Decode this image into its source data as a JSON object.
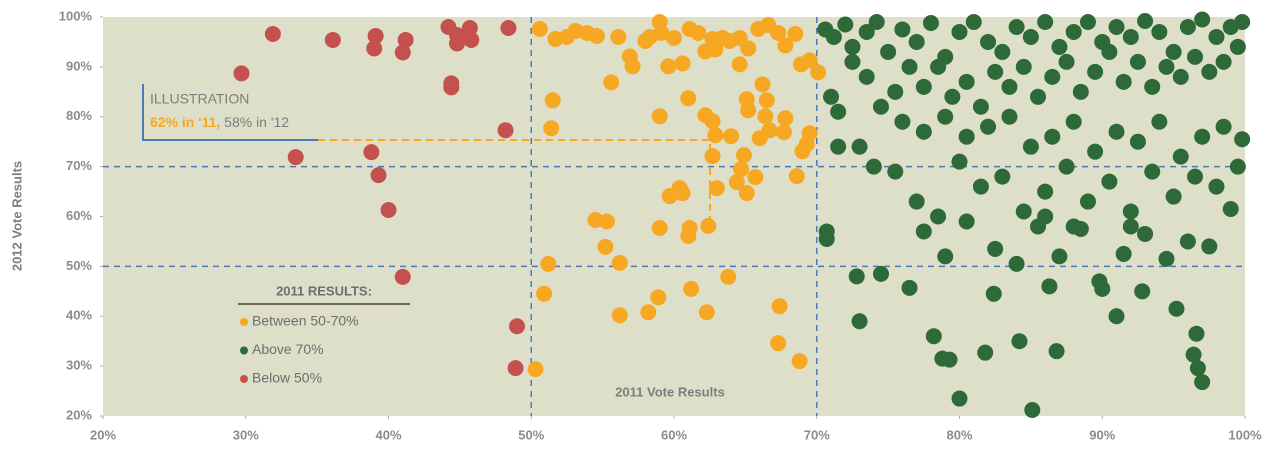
{
  "chart_data": {
    "type": "scatter",
    "x_label": "2011 Vote Results",
    "y_label": "2012 Vote Results",
    "xlim": [
      20,
      100
    ],
    "ylim": [
      20,
      100
    ],
    "xticks": [
      {
        "value": 20,
        "label": "20%"
      },
      {
        "value": 30,
        "label": "30%"
      },
      {
        "value": 40,
        "label": "40%"
      },
      {
        "value": 50,
        "label": "50%"
      },
      {
        "value": 60,
        "label": "60%"
      },
      {
        "value": 70,
        "label": "70%"
      },
      {
        "value": 80,
        "label": "80%"
      },
      {
        "value": 90,
        "label": "90%"
      },
      {
        "value": 100,
        "label": "100%"
      }
    ],
    "yticks": [
      {
        "value": 20,
        "label": "20%"
      },
      {
        "value": 30,
        "label": "30%"
      },
      {
        "value": 40,
        "label": "40%"
      },
      {
        "value": 50,
        "label": "50%"
      },
      {
        "value": 60,
        "label": "60%"
      },
      {
        "value": 70,
        "label": "70%"
      },
      {
        "value": 80,
        "label": "80%"
      },
      {
        "value": 90,
        "label": "90%"
      },
      {
        "value": 100,
        "label": "100%"
      }
    ],
    "xlines": [
      50,
      70
    ],
    "ylines": [
      50,
      70
    ],
    "legend_title": "2011 RESULTS:",
    "annotation": {
      "title": "ILLUSTRATION",
      "highlight": "62% in '11,",
      "text": "58% in '12"
    },
    "series": [
      {
        "name": "Between 50-70%",
        "color": "#f7a823",
        "x": [
          50.6,
          51.7,
          52.5,
          53.1,
          53.9,
          54.6,
          55.6,
          56.1,
          56.9,
          57.1,
          58.0,
          58.3,
          59.0,
          59.1,
          59.6,
          60.0,
          60.6,
          61.1,
          61.7,
          62.2,
          62.7,
          62.9,
          63.4,
          63.9,
          64.6,
          64.6,
          65.2,
          65.9,
          66.6,
          67.3,
          67.8,
          68.5,
          68.9,
          69.5,
          70.1,
          51.5,
          51.4,
          59.0,
          61.0,
          62.2,
          62.7,
          62.9,
          64.0,
          65.1,
          65.2,
          66.2,
          66.5,
          66.4,
          66.7,
          67.8,
          67.7,
          66.0,
          69.5,
          69.3,
          69.0,
          62.7,
          64.7,
          64.4,
          65.1,
          65.7,
          64.9,
          63.0,
          60.4,
          60.6,
          59.7,
          61.1,
          61.0,
          62.4,
          59.0,
          54.5,
          55.3,
          55.2,
          56.2,
          51.2,
          50.9,
          56.2,
          58.2,
          58.9,
          61.2,
          62.3,
          63.8,
          67.4,
          67.3,
          68.8,
          50.3,
          68.6
        ],
        "values": [
          97.6,
          95.6,
          96.0,
          97.2,
          96.8,
          96.2,
          86.9,
          96.0,
          92.1,
          90.1,
          95.2,
          96.0,
          99.0,
          96.8,
          90.1,
          95.8,
          90.7,
          97.6,
          96.8,
          93.1,
          95.6,
          93.5,
          95.8,
          95.2,
          95.8,
          90.5,
          93.7,
          97.6,
          98.4,
          96.8,
          94.3,
          96.6,
          90.5,
          91.3,
          88.9,
          83.3,
          77.7,
          80.1,
          83.7,
          80.3,
          79.1,
          76.3,
          76.1,
          83.5,
          81.3,
          86.5,
          83.3,
          80.1,
          77.3,
          79.7,
          76.9,
          75.7,
          76.7,
          74.5,
          73.1,
          72.1,
          69.5,
          66.9,
          64.7,
          67.9,
          72.3,
          65.7,
          65.7,
          64.7,
          64.1,
          57.7,
          56.1,
          58.1,
          57.7,
          59.3,
          59.0,
          53.9,
          50.7,
          50.5,
          44.5,
          40.2,
          40.8,
          43.8,
          45.5,
          40.8,
          47.9,
          42.0,
          34.6,
          31.0,
          29.4,
          68.1
        ]
      },
      {
        "name": "Above 70%",
        "color": "#2e6a38",
        "x": [
          70.6,
          71.2,
          72,
          72.5,
          73.5,
          74.2,
          75,
          76,
          77,
          78,
          79,
          80,
          81,
          82,
          83,
          84,
          85,
          86,
          87,
          88,
          89,
          90,
          91,
          92,
          93,
          94,
          95,
          96,
          97,
          98,
          99,
          99.8,
          99.5,
          98.5,
          97.5,
          96.5,
          95.5,
          94.5,
          93.5,
          92.5,
          91.5,
          90.5,
          89.5,
          88.5,
          87.5,
          86.5,
          85.5,
          84.5,
          83.5,
          82.5,
          81.5,
          80.5,
          79.5,
          78.5,
          77.5,
          76.5,
          75.5,
          74.5,
          73.5,
          72.5,
          71,
          71.5,
          76,
          77.5,
          79,
          80.5,
          82,
          83.5,
          85,
          86.5,
          88,
          89.5,
          91,
          92.5,
          94,
          95.5,
          97,
          98.5,
          99.8,
          99.5,
          98,
          96.5,
          95,
          93.5,
          92,
          90.5,
          89,
          87.5,
          86,
          84.5,
          83,
          81.5,
          80,
          78.5,
          77,
          75.5,
          74,
          73,
          71.5,
          70.7,
          70.7,
          74.5,
          76.5,
          77.5,
          79,
          80.5,
          82.5,
          84,
          85.5,
          87,
          88.5,
          90,
          91.5,
          93,
          94.5,
          96,
          97.5,
          99,
          72.8,
          73,
          78.2,
          78.8,
          79.3,
          80,
          81.8,
          82.4,
          84.2,
          85.1,
          86.3,
          86.8,
          89.8,
          91,
          92.8,
          95.2,
          96.6,
          96.4,
          96.7,
          97,
          86,
          88,
          92
        ],
        "values": [
          97.5,
          96,
          98.5,
          94,
          97,
          99,
          93,
          97.5,
          95,
          98.8,
          92,
          97,
          99,
          95,
          93,
          98,
          96,
          99,
          94,
          97,
          99,
          95,
          98,
          96,
          99.2,
          97,
          93,
          98,
          99.5,
          96,
          98,
          99,
          94,
          91,
          89,
          92,
          88,
          90,
          86,
          91,
          87,
          93,
          89,
          85,
          91,
          88,
          84,
          90,
          86,
          89,
          82,
          87,
          84,
          90,
          86,
          90,
          85,
          82,
          88,
          91,
          84,
          81,
          79,
          77,
          80,
          76,
          78,
          80,
          74,
          76,
          79,
          73,
          77,
          75,
          79,
          72,
          76,
          78,
          75.5,
          70,
          66,
          68,
          64,
          69,
          61,
          67,
          63,
          70,
          65,
          61,
          68,
          66,
          71,
          60,
          63,
          69,
          70,
          74,
          74,
          57,
          55.5,
          48.5,
          45.7,
          57,
          52,
          59,
          53.5,
          50.5,
          58,
          52,
          57.5,
          45.5,
          52.5,
          56.5,
          51.5,
          55,
          54,
          61.5,
          48,
          39,
          36,
          31.5,
          31.3,
          23.5,
          32.7,
          44.5,
          35,
          21.2,
          46,
          33,
          47,
          40,
          45,
          41.5,
          36.5,
          32.3,
          29.6,
          26.8,
          60,
          58,
          58
        ]
      },
      {
        "name": "Below 50%",
        "color": "#c4514e",
        "x": [
          29.7,
          31.9,
          36.1,
          39.1,
          39.0,
          41.2,
          41.0,
          44.2,
          44.8,
          44.8,
          45.7,
          45.8,
          44.4,
          44.4,
          48.4,
          48.2,
          33.5,
          38.8,
          39.3,
          40.0,
          41.0,
          49.0,
          48.9
        ],
        "values": [
          88.7,
          96.6,
          95.4,
          96.2,
          93.7,
          95.4,
          92.9,
          98.0,
          96.4,
          94.7,
          97.8,
          95.4,
          86.7,
          85.9,
          97.8,
          77.3,
          71.9,
          72.9,
          68.3,
          61.3,
          47.9,
          38.0,
          29.6
        ]
      }
    ]
  }
}
